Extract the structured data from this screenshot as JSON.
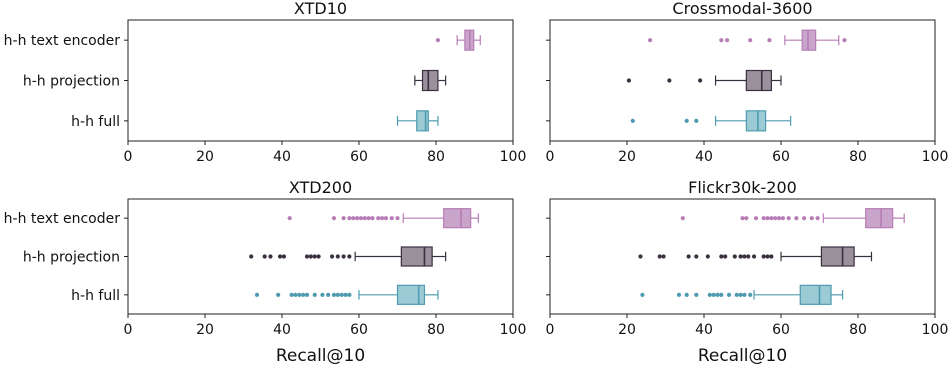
{
  "chart_data": [
    {
      "type": "boxplot",
      "title": "XTD10",
      "xlabel": "",
      "xlim": [
        0,
        100
      ],
      "xticks": [
        0,
        20,
        40,
        60,
        80,
        100
      ],
      "show_ylabels": true,
      "categories": [
        "h-h text encoder",
        "h-h projection",
        "h-h full"
      ],
      "colors": [
        "#c9a5cc",
        "#9a919d",
        "#9ccbd5"
      ],
      "outlier_colors": [
        "#b77db6",
        "#3a3040",
        "#4e9bb0"
      ],
      "boxes": [
        {
          "whislo": 85.5,
          "q1": 87.5,
          "med": 88.8,
          "q3": 89.8,
          "whishi": 91.5,
          "fliers": [
            80.5
          ]
        },
        {
          "whislo": 74.5,
          "q1": 76.5,
          "med": 78.0,
          "q3": 80.5,
          "whishi": 82.5,
          "fliers": []
        },
        {
          "whislo": 70.0,
          "q1": 75.0,
          "med": 77.3,
          "q3": 78.0,
          "whishi": 80.5,
          "fliers": []
        }
      ]
    },
    {
      "type": "boxplot",
      "title": "Crossmodal-3600",
      "xlabel": "",
      "xlim": [
        0,
        100
      ],
      "xticks": [
        0,
        20,
        40,
        60,
        80,
        100
      ],
      "show_ylabels": false,
      "categories": [
        "h-h text encoder",
        "h-h projection",
        "h-h full"
      ],
      "colors": [
        "#c9a5cc",
        "#9a919d",
        "#9ccbd5"
      ],
      "outlier_colors": [
        "#b77db6",
        "#3a3040",
        "#4e9bb0"
      ],
      "boxes": [
        {
          "whislo": 61.0,
          "q1": 65.5,
          "med": 67.0,
          "q3": 69.0,
          "whishi": 75.0,
          "fliers": [
            26.0,
            44.5,
            46.0,
            52.0,
            57.0,
            76.5
          ]
        },
        {
          "whislo": 43.0,
          "q1": 51.0,
          "med": 55.0,
          "q3": 57.5,
          "whishi": 60.0,
          "fliers": [
            20.5,
            31.0,
            39.0
          ]
        },
        {
          "whislo": 43.0,
          "q1": 51.0,
          "med": 54.0,
          "q3": 56.0,
          "whishi": 62.5,
          "fliers": [
            21.5,
            35.5,
            38.0
          ]
        }
      ]
    },
    {
      "type": "boxplot",
      "title": "XTD200",
      "xlabel": "Recall@10",
      "xlim": [
        0,
        100
      ],
      "xticks": [
        0,
        20,
        40,
        60,
        80,
        100
      ],
      "show_ylabels": true,
      "categories": [
        "h-h text encoder",
        "h-h projection",
        "h-h full"
      ],
      "colors": [
        "#c9a5cc",
        "#9a919d",
        "#9ccbd5"
      ],
      "outlier_colors": [
        "#b77db6",
        "#3a3040",
        "#4e9bb0"
      ],
      "boxes": [
        {
          "whislo": 71.5,
          "q1": 82.0,
          "med": 86.5,
          "q3": 89.0,
          "whishi": 91.0,
          "fliers": [
            42.0,
            53.5,
            56.0,
            57.5,
            58.5,
            59.5,
            60.5,
            61.5,
            62.5,
            63.5,
            65.0,
            66.0,
            67.0,
            68.5,
            70.0
          ]
        },
        {
          "whislo": 59.0,
          "q1": 71.0,
          "med": 77.0,
          "q3": 79.0,
          "whishi": 82.5,
          "fliers": [
            32.0,
            35.5,
            37.0,
            39.5,
            40.5,
            46.5,
            47.5,
            48.5,
            49.5,
            53.0,
            54.5,
            56.0,
            57.5
          ]
        },
        {
          "whislo": 60.0,
          "q1": 70.0,
          "med": 75.5,
          "q3": 77.0,
          "whishi": 80.5,
          "fliers": [
            33.5,
            39.0,
            42.5,
            43.5,
            44.5,
            45.5,
            46.5,
            48.5,
            50.5,
            52.0,
            53.5,
            54.5,
            55.5,
            56.5,
            57.5
          ]
        }
      ]
    },
    {
      "type": "boxplot",
      "title": "Flickr30k-200",
      "xlabel": "Recall@10",
      "xlim": [
        0,
        100
      ],
      "xticks": [
        0,
        20,
        40,
        60,
        80,
        100
      ],
      "show_ylabels": false,
      "categories": [
        "h-h text encoder",
        "h-h projection",
        "h-h full"
      ],
      "colors": [
        "#c9a5cc",
        "#9a919d",
        "#9ccbd5"
      ],
      "outlier_colors": [
        "#b77db6",
        "#3a3040",
        "#4e9bb0"
      ],
      "boxes": [
        {
          "whislo": 71.0,
          "q1": 82.0,
          "med": 86.0,
          "q3": 89.0,
          "whishi": 92.0,
          "fliers": [
            34.5,
            50.0,
            51.0,
            53.5,
            55.5,
            56.5,
            57.5,
            58.5,
            59.5,
            60.5,
            62.0,
            64.0,
            66.0,
            68.0,
            69.5
          ]
        },
        {
          "whislo": 60.0,
          "q1": 70.5,
          "med": 76.0,
          "q3": 79.0,
          "whishi": 83.5,
          "fliers": [
            23.5,
            28.5,
            29.5,
            36.0,
            38.0,
            41.0,
            44.5,
            45.5,
            48.0,
            49.5,
            50.5,
            51.5,
            53.0,
            55.5,
            56.5,
            57.5
          ]
        },
        {
          "whislo": 53.0,
          "q1": 65.0,
          "med": 70.0,
          "q3": 73.0,
          "whishi": 76.0,
          "fliers": [
            24.0,
            33.5,
            35.5,
            38.0,
            41.5,
            42.5,
            43.5,
            44.5,
            46.5,
            48.5,
            49.5,
            50.5,
            52.0
          ]
        }
      ]
    }
  ]
}
